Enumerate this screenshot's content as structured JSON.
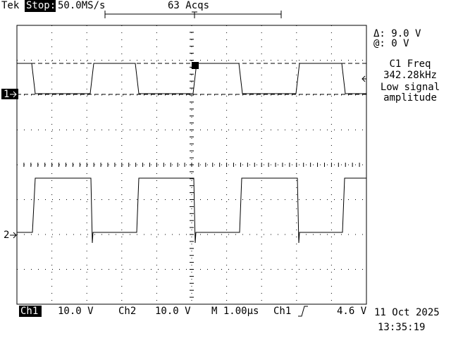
{
  "header": {
    "brand": "Tek",
    "state": "Stop:",
    "sample_rate": "50.0MS/s",
    "acquisitions": "63 Acqs"
  },
  "cursor": {
    "delta": "Δ: 9.0 V",
    "at": "@: 0 V"
  },
  "measurement": {
    "label": "C1 Freq",
    "value": "342.28kHz",
    "status": [
      "Low signal",
      "amplitude"
    ]
  },
  "channels": [
    {
      "marker": "1"
    },
    {
      "marker": "2"
    }
  ],
  "footer": {
    "ch1_label": "Ch1",
    "ch1_scale": "10.0 V",
    "ch2_label": "Ch2",
    "ch2_scale": "10.0 V",
    "timebase": "M 1.00µs",
    "trigger_source": "Ch1",
    "trigger_level": "4.6 V",
    "date": "11 Oct 2025",
    "time": "13:35:19"
  }
}
